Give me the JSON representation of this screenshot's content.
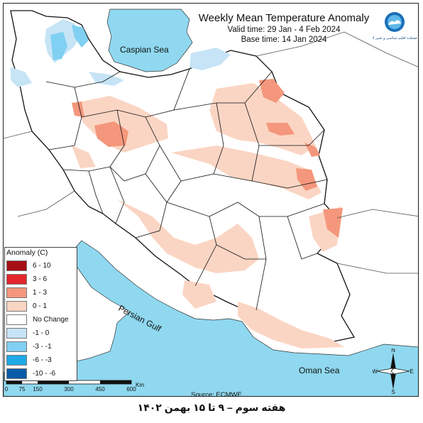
{
  "header": {
    "title": "Weekly Mean Temperature Anomaly",
    "valid_time": "Valid time: 29 Jan - 4 Feb 2024",
    "base_time": "Base time: 14 Jan 2024",
    "logo_text": "پژوهشکده اقلیم شناسی و تغییر اقلیم"
  },
  "map_labels": {
    "caspian": "Caspian Sea",
    "persian_gulf": "Persian Gulf",
    "oman_sea": "Oman Sea"
  },
  "legend": {
    "title": "Anomaly (C)",
    "items": [
      {
        "label": "6 - 10",
        "color": "#a50f15"
      },
      {
        "label": "3 - 6",
        "color": "#e3262b"
      },
      {
        "label": "1 - 3",
        "color": "#f4977c"
      },
      {
        "label": "0 - 1",
        "color": "#fbd5c3"
      },
      {
        "label": "No Change",
        "color": "#ffffff"
      },
      {
        "label": "-1 - 0",
        "color": "#c6e4f6"
      },
      {
        "label": "-3 - -1",
        "color": "#7fd0f2"
      },
      {
        "label": "-6 - -3",
        "color": "#1fa8e6"
      },
      {
        "label": "-10 - -6",
        "color": "#0a5ca8"
      }
    ]
  },
  "scale_bar": {
    "ticks": [
      "0",
      "75",
      "150",
      "300",
      "450",
      "600"
    ],
    "unit": "Km"
  },
  "compass": {
    "n": "N",
    "s": "S",
    "e": "E",
    "w": "W"
  },
  "source": "Source: ECMWF",
  "footer": "هفته سوم – ۹ تا ۱۵ بهمن ۱۴۰۲",
  "colors": {
    "water": "#8fd8ef",
    "outside": "#ffffff"
  }
}
